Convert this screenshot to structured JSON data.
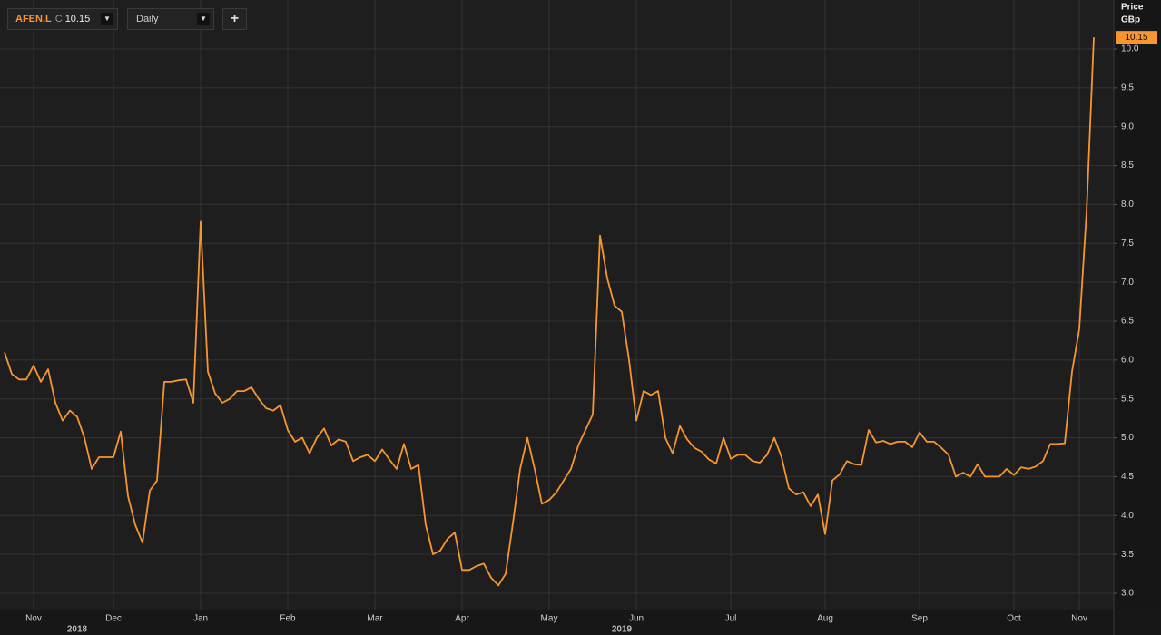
{
  "chart_data": {
    "type": "line",
    "interval": "Daily",
    "close_prefix": "C",
    "y_label": "Price",
    "y_unit": "GBp",
    "categories": [
      null,
      null,
      null,
      null,
      "Nov",
      null,
      null,
      null,
      null,
      null,
      null,
      null,
      null,
      null,
      null,
      "Dec",
      null,
      null,
      null,
      null,
      null,
      null,
      null,
      null,
      null,
      null,
      null,
      "Jan",
      null,
      null,
      null,
      null,
      null,
      null,
      null,
      null,
      null,
      null,
      null,
      "Feb",
      null,
      null,
      null,
      null,
      null,
      null,
      null,
      null,
      null,
      null,
      null,
      "Mar",
      null,
      null,
      null,
      null,
      null,
      null,
      null,
      null,
      null,
      null,
      null,
      "Apr",
      null,
      null,
      null,
      null,
      null,
      null,
      null,
      null,
      null,
      null,
      null,
      "May",
      null,
      null,
      null,
      null,
      null,
      null,
      null,
      null,
      null,
      null,
      null,
      "Jun",
      null,
      null,
      null,
      null,
      null,
      null,
      null,
      null,
      null,
      null,
      null,
      null,
      "Jul",
      null,
      null,
      null,
      null,
      null,
      null,
      null,
      null,
      null,
      null,
      null,
      null,
      "Aug",
      null,
      null,
      null,
      null,
      null,
      null,
      null,
      null,
      null,
      null,
      null,
      null,
      "Sep",
      null,
      null,
      null,
      null,
      null,
      null,
      null,
      null,
      null,
      null,
      null,
      null,
      "Oct",
      null,
      null,
      null,
      null,
      null,
      null,
      null,
      null,
      "Nov",
      null,
      null
    ],
    "years": [
      null,
      null,
      null,
      null,
      null,
      null,
      null,
      null,
      null,
      null,
      "2018",
      null,
      null,
      null,
      null,
      null,
      null,
      null,
      null,
      null,
      null,
      null,
      null,
      null,
      null,
      null,
      null,
      null,
      null,
      null,
      null,
      null,
      null,
      null,
      null,
      null,
      null,
      null,
      null,
      null,
      null,
      null,
      null,
      null,
      null,
      null,
      null,
      null,
      null,
      null,
      null,
      null,
      null,
      null,
      null,
      null,
      null,
      null,
      null,
      null,
      null,
      null,
      null,
      null,
      null,
      null,
      null,
      null,
      null,
      null,
      null,
      null,
      null,
      null,
      null,
      null,
      null,
      null,
      null,
      null,
      null,
      null,
      null,
      null,
      null,
      "2019",
      null,
      null,
      null,
      null,
      null,
      null,
      null,
      null,
      null,
      null,
      null,
      null,
      null,
      null,
      null,
      null,
      null,
      null,
      null,
      null,
      null,
      null,
      null,
      null,
      null,
      null,
      null,
      null,
      null,
      null,
      null,
      null,
      null,
      null,
      null,
      null,
      null,
      null,
      null,
      null,
      null,
      null,
      null,
      null,
      null,
      null,
      null,
      null,
      null,
      null,
      null,
      null,
      null,
      null,
      null,
      null,
      null,
      null,
      null,
      null,
      null,
      null,
      null,
      null
    ],
    "series": [
      {
        "name": "AFEN.L",
        "color": "#f7962f",
        "values": [
          6.1,
          5.82,
          5.75,
          5.75,
          5.93,
          5.72,
          5.88,
          5.45,
          5.22,
          5.35,
          5.27,
          5.0,
          4.6,
          4.75,
          4.75,
          4.75,
          5.08,
          4.25,
          3.88,
          3.65,
          4.32,
          4.45,
          5.72,
          5.72,
          5.74,
          5.75,
          5.45,
          7.78,
          5.85,
          5.57,
          5.45,
          5.5,
          5.6,
          5.6,
          5.65,
          5.5,
          5.38,
          5.35,
          5.42,
          5.1,
          4.95,
          5.0,
          4.8,
          5.0,
          5.12,
          4.9,
          4.98,
          4.95,
          4.7,
          4.75,
          4.78,
          4.7,
          4.85,
          4.72,
          4.6,
          4.92,
          4.6,
          4.65,
          3.88,
          3.5,
          3.55,
          3.7,
          3.78,
          3.3,
          3.3,
          3.35,
          3.38,
          3.2,
          3.1,
          3.25,
          3.9,
          4.6,
          5.0,
          4.6,
          4.15,
          4.2,
          4.3,
          4.45,
          4.6,
          4.9,
          5.1,
          5.3,
          7.6,
          7.05,
          6.7,
          6.62,
          6.0,
          5.22,
          5.6,
          5.55,
          5.6,
          5.0,
          4.8,
          5.15,
          4.98,
          4.87,
          4.82,
          4.72,
          4.67,
          5.0,
          4.73,
          4.78,
          4.78,
          4.7,
          4.68,
          4.78,
          5.0,
          4.75,
          4.35,
          4.27,
          4.3,
          4.12,
          4.27,
          3.76,
          4.45,
          4.53,
          4.7,
          4.66,
          4.65,
          5.1,
          4.94,
          4.96,
          4.92,
          4.95,
          4.95,
          4.88,
          5.07,
          4.95,
          4.95,
          4.87,
          4.78,
          4.5,
          4.55,
          4.5,
          4.66,
          4.5,
          4.5,
          4.5,
          4.6,
          4.52,
          4.62,
          4.6,
          4.63,
          4.7,
          4.92,
          4.92,
          4.93,
          5.85,
          6.4,
          7.9,
          10.15
        ]
      }
    ],
    "ylim": [
      2.79,
      10.63
    ],
    "yticks": [
      {
        "value": 3,
        "label": "3.0"
      },
      3.5,
      {
        "value": 4,
        "label": "4.0"
      },
      4.5,
      {
        "value": 5,
        "label": "5.0"
      },
      5.5,
      {
        "value": 6,
        "label": "6.0"
      },
      6.5,
      {
        "value": 7,
        "label": "7.0"
      },
      7.5,
      {
        "value": 8,
        "label": "8.0"
      },
      8.5,
      {
        "value": 9,
        "label": "9.0"
      },
      9.5,
      {
        "value": 10,
        "label": "10.0"
      }
    ],
    "grid": true
  }
}
